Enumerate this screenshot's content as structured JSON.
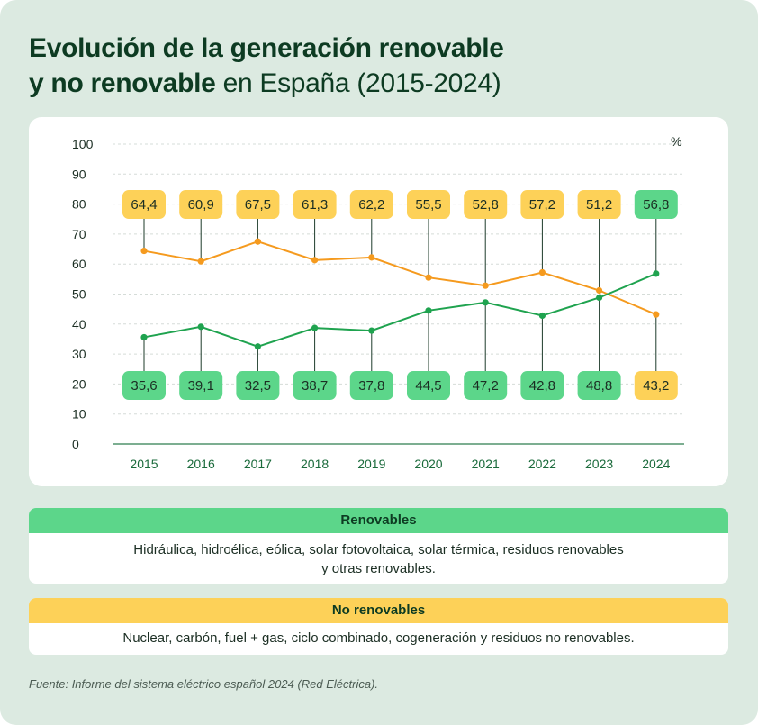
{
  "title": {
    "bold_line1": "Evolución de la generación renovable",
    "bold_line2": "y no renovable",
    "light_line2": " en España (2015-2024)"
  },
  "chart_data": {
    "type": "line",
    "x": [
      "2015",
      "2016",
      "2017",
      "2018",
      "2019",
      "2020",
      "2021",
      "2022",
      "2023",
      "2024"
    ],
    "series": [
      {
        "key": "non_renewable",
        "color": "#f59a1e",
        "label_bg": "#fdd158",
        "values": [
          64.4,
          60.9,
          67.5,
          61.3,
          62.2,
          55.5,
          52.8,
          57.2,
          51.2,
          43.2
        ],
        "labels": [
          "64,4",
          "60,9",
          "67,5",
          "61,3",
          "62,2",
          "55,5",
          "52,8",
          "57,2",
          "51,2",
          "43,2"
        ]
      },
      {
        "key": "renewable",
        "color": "#1fa34f",
        "label_bg": "#5cd68a",
        "values": [
          35.6,
          39.1,
          32.5,
          38.7,
          37.8,
          44.5,
          47.2,
          42.8,
          48.8,
          56.8
        ],
        "labels": [
          "35,6",
          "39,1",
          "32,5",
          "38,7",
          "37,8",
          "44,5",
          "47,2",
          "42,8",
          "48,8",
          "56,8"
        ]
      }
    ],
    "yticks": [
      "0",
      "10",
      "20",
      "30",
      "40",
      "50",
      "60",
      "70",
      "80",
      "90",
      "100"
    ],
    "ylim": [
      0,
      100
    ],
    "yunit": "%",
    "grid": true
  },
  "legend": {
    "renewables": {
      "title": "Renovables",
      "text": "Hidráulica, hidroélica, eólica, solar fotovoltaica, solar térmica, residuos renovables\ny otras renovables."
    },
    "non_renewables": {
      "title": "No renovables",
      "text": "Nuclear, carbón, fuel + gas, ciclo combinado, cogeneración y residuos no renovables."
    }
  },
  "source": "Fuente: Informe del sistema eléctrico español 2024 (Red Eléctrica)."
}
